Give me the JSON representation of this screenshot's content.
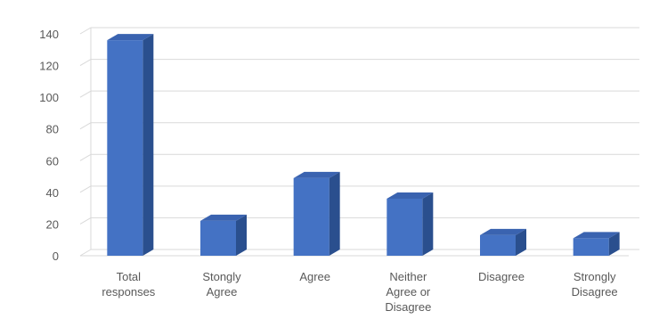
{
  "chart_data": {
    "type": "bar",
    "categories": [
      [
        "Total",
        "responses"
      ],
      [
        "Stongly",
        "Agree"
      ],
      [
        "Agree"
      ],
      [
        "Neither",
        "Agree or",
        "Disagree"
      ],
      [
        "Disagree"
      ],
      [
        "Strongly",
        "Disagree"
      ]
    ],
    "values": [
      136,
      22,
      49,
      36,
      13,
      11
    ],
    "y_ticks": [
      "0",
      "20",
      "40",
      "60",
      "80",
      "100",
      "120",
      "140"
    ],
    "ylim": [
      0,
      140
    ],
    "grid": true,
    "style": "3d-column",
    "colors": {
      "bar_front": "#4472c4",
      "bar_side": "#2a4f8e",
      "bar_top": "#3a63b0",
      "grid": "#d9d9d9"
    }
  }
}
